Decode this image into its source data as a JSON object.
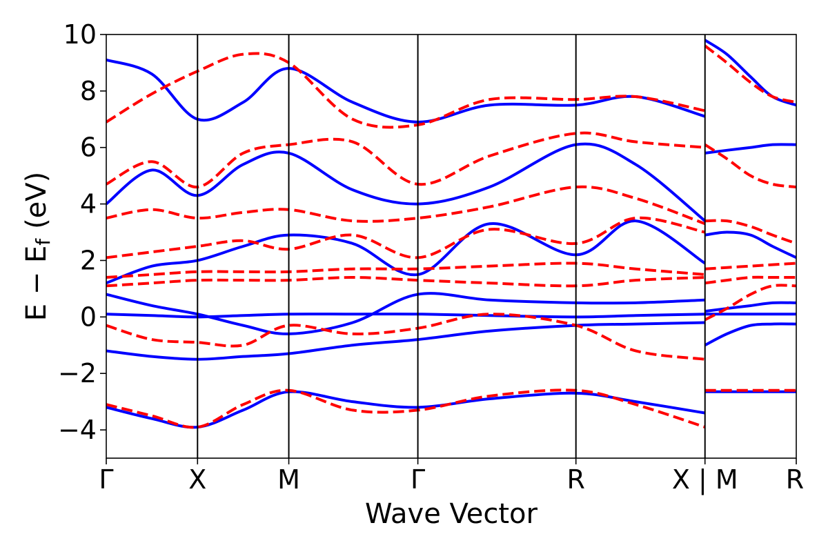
{
  "chart_data": {
    "type": "line",
    "title": "",
    "xlabel": "Wave Vector",
    "ylabel": {
      "main": "E − E",
      "subscript": "f",
      "unit": "(eV)"
    },
    "ylim": [
      -5,
      10
    ],
    "yticks": [
      -4,
      -2,
      0,
      2,
      4,
      6,
      8,
      10
    ],
    "ytick_labels": [
      "−4",
      "−2",
      "0",
      "2",
      "4",
      "6",
      "8",
      "10"
    ],
    "xticks": [
      {
        "pos": 0.0,
        "label": "Γ"
      },
      {
        "pos": 0.5,
        "label": "X"
      },
      {
        "pos": 1.0,
        "label": "M"
      },
      {
        "pos": 1.707,
        "label": "Γ"
      },
      {
        "pos": 2.573,
        "label": "R"
      },
      {
        "pos": 3.28,
        "label": "X | M"
      },
      {
        "pos": 3.78,
        "label": "R"
      }
    ],
    "xlim": [
      0,
      3.78
    ],
    "grid": false,
    "series_style": {
      "solid": {
        "color": "#0000ff",
        "dash": "solid"
      },
      "dashed": {
        "color": "#ff0000",
        "dash": "dashed"
      }
    },
    "series": [
      {
        "style": "solid",
        "x": [
          0,
          0.25,
          0.5,
          0.75,
          1.0,
          1.35,
          1.707,
          2.1,
          2.573,
          2.9,
          3.28
        ],
        "y": [
          -3.2,
          -3.6,
          -3.9,
          -3.3,
          -2.65,
          -3.0,
          -3.2,
          -2.9,
          -2.7,
          -3.0,
          -3.4
        ]
      },
      {
        "style": "solid",
        "x": [
          0,
          0.25,
          0.5,
          0.75,
          1.0,
          1.35,
          1.707,
          2.1,
          2.573,
          2.9,
          3.28
        ],
        "y": [
          -1.2,
          -1.4,
          -1.5,
          -1.4,
          -1.3,
          -1.0,
          -0.8,
          -0.5,
          -0.3,
          -0.25,
          -0.2
        ]
      },
      {
        "style": "solid",
        "x": [
          0,
          0.25,
          0.5,
          0.75,
          1.0,
          1.35,
          1.707,
          2.1,
          2.573,
          2.9,
          3.28
        ],
        "y": [
          0.1,
          0.05,
          0.0,
          0.05,
          0.1,
          0.1,
          0.1,
          0.05,
          0.0,
          0.05,
          0.1
        ]
      },
      {
        "style": "solid",
        "x": [
          0,
          0.25,
          0.5,
          0.75,
          1.0,
          1.35,
          1.707,
          2.1,
          2.573,
          2.9,
          3.28
        ],
        "y": [
          0.8,
          0.4,
          0.1,
          -0.3,
          -0.6,
          -0.2,
          0.8,
          0.6,
          0.5,
          0.5,
          0.6
        ]
      },
      {
        "style": "solid",
        "x": [
          0,
          0.25,
          0.5,
          0.75,
          1.0,
          1.35,
          1.707,
          2.1,
          2.573,
          2.9,
          3.28
        ],
        "y": [
          1.2,
          1.8,
          2.0,
          2.5,
          2.9,
          2.6,
          1.5,
          3.3,
          2.2,
          3.4,
          1.9
        ]
      },
      {
        "style": "solid",
        "x": [
          0,
          0.25,
          0.5,
          0.75,
          1.0,
          1.35,
          1.707,
          2.1,
          2.573,
          2.9,
          3.28
        ],
        "y": [
          4.0,
          5.2,
          4.3,
          5.4,
          5.8,
          4.5,
          4.0,
          4.6,
          6.1,
          5.4,
          3.4
        ]
      },
      {
        "style": "solid",
        "x": [
          0,
          0.25,
          0.5,
          0.75,
          1.0,
          1.35,
          1.707,
          2.1,
          2.573,
          2.9,
          3.28
        ],
        "y": [
          9.1,
          8.6,
          7.0,
          7.6,
          8.8,
          7.6,
          6.9,
          7.5,
          7.5,
          7.8,
          7.1
        ]
      },
      {
        "style": "dashed",
        "x": [
          0,
          0.25,
          0.5,
          0.75,
          1.0,
          1.35,
          1.707,
          2.1,
          2.573,
          2.9,
          3.28
        ],
        "y": [
          -3.1,
          -3.5,
          -3.9,
          -3.1,
          -2.6,
          -3.3,
          -3.3,
          -2.8,
          -2.6,
          -3.1,
          -3.9
        ]
      },
      {
        "style": "dashed",
        "x": [
          0,
          0.25,
          0.5,
          0.75,
          1.0,
          1.35,
          1.707,
          2.1,
          2.573,
          2.9,
          3.28
        ],
        "y": [
          -0.3,
          -0.8,
          -0.9,
          -1.0,
          -0.3,
          -0.6,
          -0.4,
          0.1,
          -0.3,
          -1.2,
          -1.5
        ]
      },
      {
        "style": "dashed",
        "x": [
          0,
          0.25,
          0.5,
          0.75,
          1.0,
          1.35,
          1.707,
          2.1,
          2.573,
          2.9,
          3.28
        ],
        "y": [
          1.4,
          1.5,
          1.6,
          1.6,
          1.6,
          1.7,
          1.7,
          1.8,
          1.9,
          1.7,
          1.5
        ]
      },
      {
        "style": "dashed",
        "x": [
          0,
          0.25,
          0.5,
          0.75,
          1.0,
          1.35,
          1.707,
          2.1,
          2.573,
          2.9,
          3.28
        ],
        "y": [
          1.1,
          1.2,
          1.3,
          1.3,
          1.3,
          1.4,
          1.3,
          1.2,
          1.1,
          1.3,
          1.4
        ]
      },
      {
        "style": "dashed",
        "x": [
          0,
          0.25,
          0.5,
          0.75,
          1.0,
          1.35,
          1.707,
          2.1,
          2.573,
          2.9,
          3.28
        ],
        "y": [
          2.1,
          2.3,
          2.5,
          2.7,
          2.4,
          2.9,
          2.1,
          3.1,
          2.6,
          3.5,
          3.0
        ]
      },
      {
        "style": "dashed",
        "x": [
          0,
          0.25,
          0.5,
          0.75,
          1.0,
          1.35,
          1.707,
          2.1,
          2.573,
          2.9,
          3.28
        ],
        "y": [
          3.5,
          3.8,
          3.5,
          3.7,
          3.8,
          3.4,
          3.5,
          3.9,
          4.6,
          4.2,
          3.3
        ]
      },
      {
        "style": "dashed",
        "x": [
          0,
          0.25,
          0.5,
          0.75,
          1.0,
          1.35,
          1.707,
          2.1,
          2.573,
          2.9,
          3.28
        ],
        "y": [
          4.7,
          5.5,
          4.6,
          5.8,
          6.1,
          6.2,
          4.7,
          5.7,
          6.5,
          6.2,
          6.0
        ]
      },
      {
        "style": "dashed",
        "x": [
          0,
          0.25,
          0.5,
          0.75,
          1.0,
          1.35,
          1.707,
          2.1,
          2.573,
          2.9,
          3.28
        ],
        "y": [
          6.9,
          7.9,
          8.7,
          9.3,
          9.0,
          7.0,
          6.8,
          7.7,
          7.7,
          7.8,
          7.3
        ]
      },
      {
        "style": "solid",
        "x": [
          3.28,
          3.4,
          3.53,
          3.65,
          3.78
        ],
        "y": [
          -2.65,
          -2.65,
          -2.65,
          -2.65,
          -2.65
        ]
      },
      {
        "style": "solid",
        "x": [
          3.28,
          3.4,
          3.53,
          3.65,
          3.78
        ],
        "y": [
          -1.0,
          -0.6,
          -0.3,
          -0.25,
          -0.25
        ]
      },
      {
        "style": "solid",
        "x": [
          3.28,
          3.4,
          3.53,
          3.65,
          3.78
        ],
        "y": [
          0.1,
          0.1,
          0.1,
          0.1,
          0.1
        ]
      },
      {
        "style": "solid",
        "x": [
          3.28,
          3.4,
          3.53,
          3.65,
          3.78
        ],
        "y": [
          0.2,
          0.3,
          0.4,
          0.5,
          0.5
        ]
      },
      {
        "style": "solid",
        "x": [
          3.28,
          3.4,
          3.53,
          3.65,
          3.78
        ],
        "y": [
          2.9,
          3.0,
          2.9,
          2.5,
          2.1
        ]
      },
      {
        "style": "solid",
        "x": [
          3.28,
          3.4,
          3.53,
          3.65,
          3.78
        ],
        "y": [
          5.8,
          5.9,
          6.0,
          6.1,
          6.1
        ]
      },
      {
        "style": "solid",
        "x": [
          3.28,
          3.4,
          3.53,
          3.65,
          3.78
        ],
        "y": [
          9.8,
          9.3,
          8.5,
          7.8,
          7.5
        ]
      },
      {
        "style": "dashed",
        "x": [
          3.28,
          3.4,
          3.53,
          3.65,
          3.78
        ],
        "y": [
          -2.6,
          -2.6,
          -2.6,
          -2.6,
          -2.6
        ]
      },
      {
        "style": "dashed",
        "x": [
          3.28,
          3.4,
          3.53,
          3.65,
          3.78
        ],
        "y": [
          -0.1,
          0.3,
          0.8,
          1.1,
          1.1
        ]
      },
      {
        "style": "dashed",
        "x": [
          3.28,
          3.4,
          3.53,
          3.65,
          3.78
        ],
        "y": [
          1.2,
          1.3,
          1.4,
          1.4,
          1.4
        ]
      },
      {
        "style": "dashed",
        "x": [
          3.28,
          3.4,
          3.53,
          3.65,
          3.78
        ],
        "y": [
          1.7,
          1.75,
          1.8,
          1.85,
          1.9
        ]
      },
      {
        "style": "dashed",
        "x": [
          3.28,
          3.4,
          3.53,
          3.65,
          3.78
        ],
        "y": [
          3.4,
          3.4,
          3.2,
          2.9,
          2.6
        ]
      },
      {
        "style": "dashed",
        "x": [
          3.28,
          3.4,
          3.53,
          3.65,
          3.78
        ],
        "y": [
          6.1,
          5.6,
          5.0,
          4.7,
          4.6
        ]
      },
      {
        "style": "dashed",
        "x": [
          3.28,
          3.4,
          3.53,
          3.65,
          3.78
        ],
        "y": [
          9.6,
          9.0,
          8.3,
          7.8,
          7.6
        ]
      }
    ]
  }
}
